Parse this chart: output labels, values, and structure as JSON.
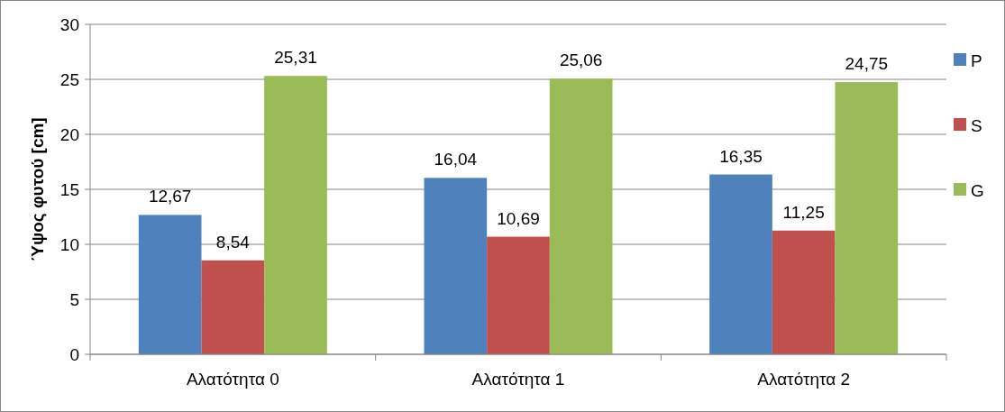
{
  "chart_data": {
    "type": "bar",
    "ylabel": "Ύψος φυτού [cm]",
    "categories": [
      "Αλατότητα 0",
      "Αλατότητα 1",
      "Αλατότητα 2"
    ],
    "series": [
      {
        "name": "P",
        "color": "#4f81bd",
        "values": [
          12.67,
          16.04,
          16.35
        ],
        "value_labels": [
          "12,67",
          "16,04",
          "16,35"
        ]
      },
      {
        "name": "S",
        "color": "#c0504d",
        "values": [
          8.54,
          10.69,
          11.25
        ],
        "value_labels": [
          "8,54",
          "10,69",
          "11,25"
        ]
      },
      {
        "name": "G",
        "color": "#9bbb59",
        "values": [
          25.31,
          25.06,
          24.75
        ],
        "value_labels": [
          "25,31",
          "25,06",
          "24,75"
        ]
      }
    ],
    "ylim": [
      0,
      30
    ],
    "yticks": [
      0,
      5,
      10,
      15,
      20,
      25,
      30
    ],
    "grid": "y",
    "legend": "right"
  }
}
